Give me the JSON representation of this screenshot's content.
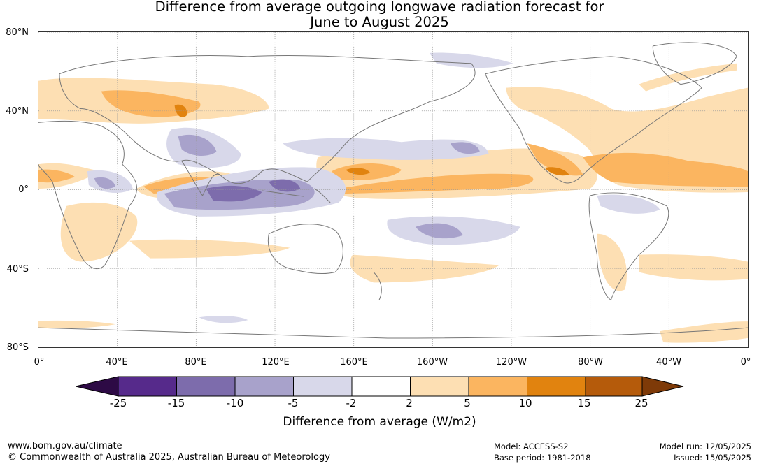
{
  "title": {
    "line1": "Difference from average outgoing longwave radiation forecast for",
    "line2": "June to August 2025"
  },
  "map": {
    "lat_labels": [
      "80°N",
      "40°N",
      "0°",
      "40°S",
      "80°S"
    ],
    "lon_labels": [
      "0°",
      "40°E",
      "80°E",
      "120°E",
      "160°E",
      "160°W",
      "120°W",
      "80°W",
      "40°W",
      "0°"
    ],
    "land_color": "#777777"
  },
  "colorbar": {
    "title": "Difference from average (W/m2)",
    "ticks": [
      "-25",
      "-15",
      "-10",
      "-5",
      "-2",
      "2",
      "5",
      "10",
      "15",
      "25"
    ],
    "colors": [
      "#2d0a45",
      "#562a8b",
      "#7d6cac",
      "#a8a2cb",
      "#d8d8ea",
      "#ffffff",
      "#fddfb3",
      "#fbb560",
      "#e1830f",
      "#b55b0b",
      "#7e3a08"
    ]
  },
  "footer": {
    "website": "www.bom.gov.au/climate",
    "copyright": "© Commonwealth of Australia 2025, Australian Bureau of Meteorology",
    "model": "Model: ACCESS-S2",
    "base_period": "Base period: 1981-2018",
    "model_run": "Model run: 12/05/2025",
    "issued": "Issued: 15/05/2025"
  }
}
